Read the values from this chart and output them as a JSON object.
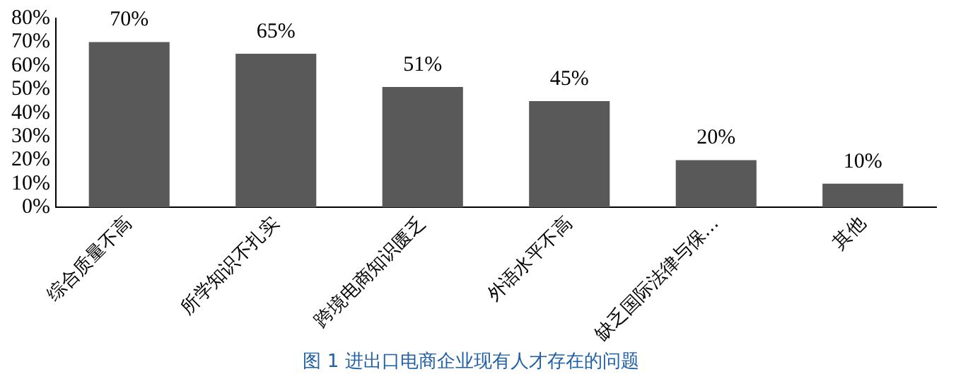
{
  "chart_data": {
    "type": "bar",
    "title": "图 1 进出口电商企业现有人才存在的问题",
    "categories": [
      "综合质量不高",
      "所学知识不扎实",
      "跨境电商知识匮乏",
      "外语水平不高",
      "缺乏国际法律与保…",
      "其他"
    ],
    "values": [
      70,
      65,
      51,
      45,
      20,
      10
    ],
    "value_labels": [
      "70%",
      "65%",
      "51%",
      "45%",
      "20%",
      "10%"
    ],
    "color": "#595959",
    "ylim": [
      0,
      80
    ],
    "yticks": [
      {
        "value": 0,
        "label": "0%"
      },
      {
        "value": 10,
        "label": "10%"
      },
      {
        "value": 20,
        "label": "20%"
      },
      {
        "value": 30,
        "label": "30%"
      },
      {
        "value": 40,
        "label": "40%"
      },
      {
        "value": 50,
        "label": "50%"
      },
      {
        "value": 60,
        "label": "60%"
      },
      {
        "value": 70,
        "label": "70%"
      },
      {
        "value": 80,
        "label": "80%"
      }
    ],
    "grid": false,
    "legend": false
  }
}
